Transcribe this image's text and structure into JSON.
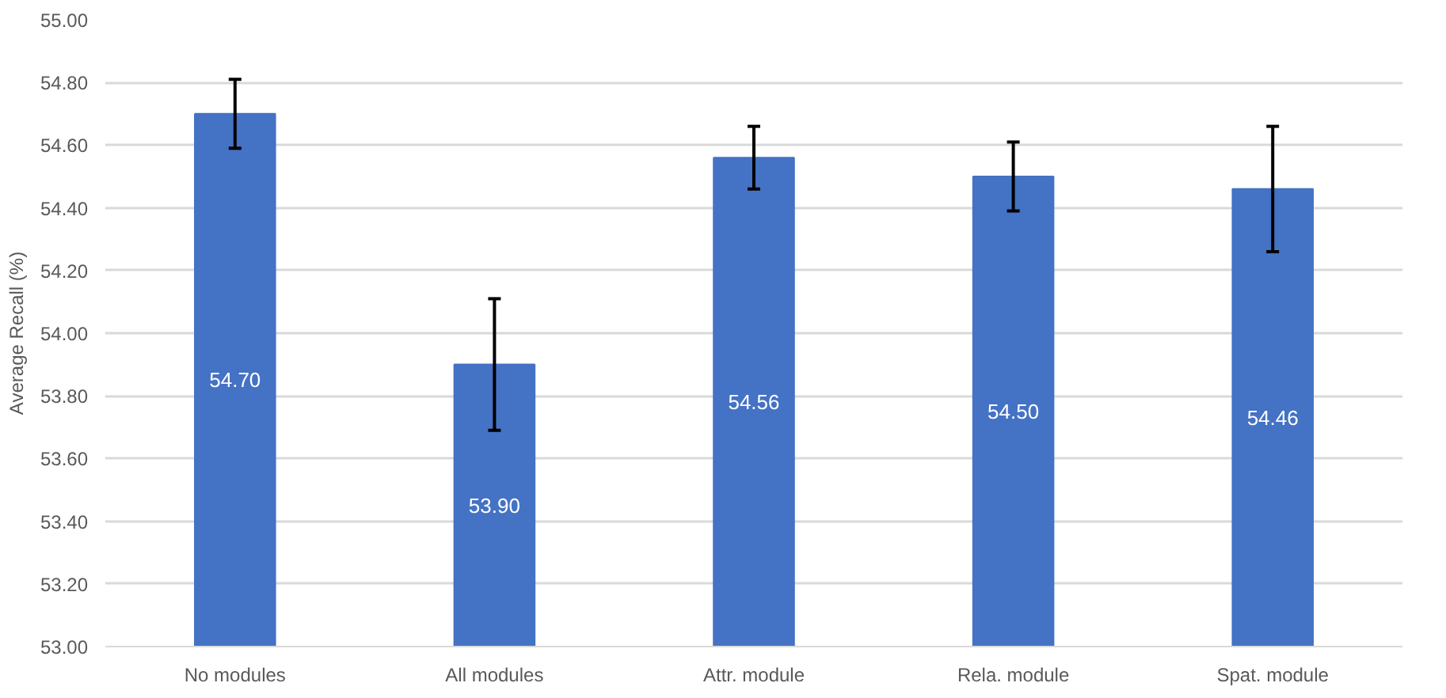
{
  "chart_data": {
    "type": "bar",
    "ylabel": "Average Recall (%)",
    "categories": [
      "No modules",
      "All modules",
      "Attr. module",
      "Rela. module",
      "Spat. module"
    ],
    "values": [
      54.7,
      53.9,
      54.56,
      54.5,
      54.46
    ],
    "errors": [
      0.11,
      0.21,
      0.1,
      0.11,
      0.2
    ],
    "color": "#4472c4",
    "ylim": [
      53.0,
      55.0
    ],
    "yticks": [
      {
        "value": 53.0,
        "label": "53.00"
      },
      {
        "value": 53.2,
        "label": "53.20"
      },
      {
        "value": 53.4,
        "label": "53.40"
      },
      {
        "value": 53.6,
        "label": "53.60"
      },
      {
        "value": 53.8,
        "label": "53.80"
      },
      {
        "value": 54.0,
        "label": "54.00"
      },
      {
        "value": 54.2,
        "label": "54.20"
      },
      {
        "value": 54.4,
        "label": "54.40"
      },
      {
        "value": 54.6,
        "label": "54.60"
      },
      {
        "value": 54.8,
        "label": "54.80"
      },
      {
        "value": 55.0,
        "label": "55.00"
      }
    ],
    "value_labels": [
      "54.70",
      "53.90",
      "54.56",
      "54.50",
      "54.46"
    ],
    "grid": "y"
  }
}
